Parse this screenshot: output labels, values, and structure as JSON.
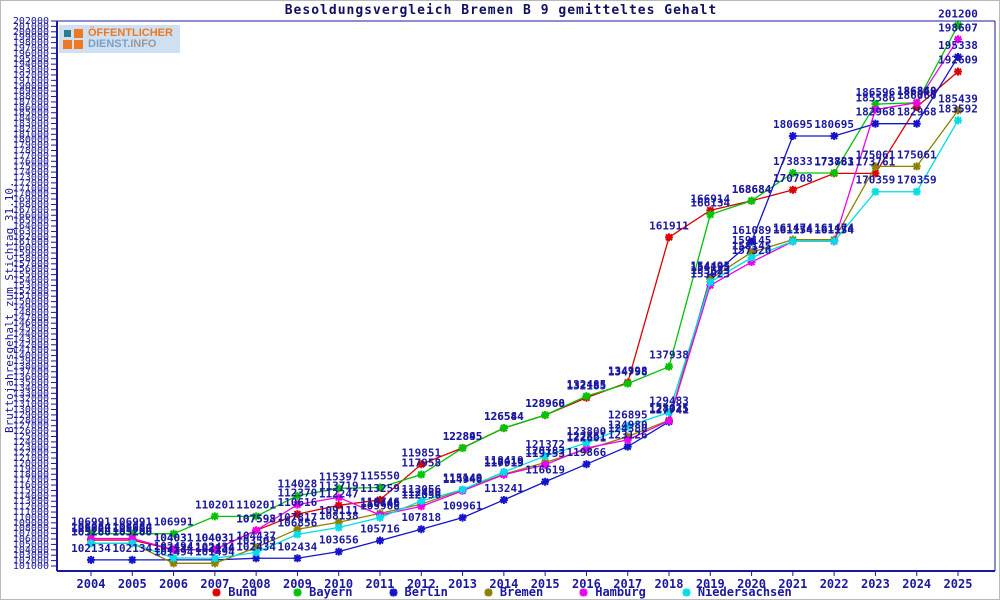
{
  "title": "Besoldungsvergleich Bremen B 9 gemitteltes Gehalt",
  "y_axis_title": "Bruttojahresgehalt zum Stichtag 31.10.",
  "logo": {
    "line1": "ÖFFENTLICHER",
    "line2a": "DIENST.",
    "line2b": "INFO"
  },
  "colors": {
    "axis": "#1a18a0",
    "tick_label": "#1a18a0",
    "point_label": "#1a18a0",
    "title": "#101060"
  },
  "chart_data": {
    "type": "line",
    "x": [
      2004,
      2005,
      2006,
      2007,
      2008,
      2009,
      2010,
      2011,
      2012,
      2013,
      2014,
      2015,
      2016,
      2017,
      2018,
      2019,
      2020,
      2021,
      2022,
      2023,
      2024,
      2025
    ],
    "series": [
      {
        "name": "Bund",
        "color": "#dd0000",
        "values": [
          105800,
          105800,
          104031,
          104031,
          107593,
          110616,
          112247,
          113259,
          119851,
          122895,
          126544,
          128960,
          132185,
          134998,
          161911,
          166914,
          168684,
          170708,
          173761,
          173761,
          186060,
          192609
        ]
      },
      {
        "name": "Bayern",
        "color": "#00c400",
        "values": [
          106991,
          106991,
          106991,
          110201,
          110201,
          114028,
          115397,
          115550,
          117958,
          122845,
          126584,
          128968,
          132485,
          134798,
          137938,
          166134,
          168684,
          173833,
          173833,
          186596,
          186848,
          201200
        ]
      },
      {
        "name": "Berlin",
        "color": "#1414cc",
        "values": [
          102134,
          102134,
          102134,
          102134,
          102434,
          102434,
          103656,
          105716,
          107818,
          109961,
          113241,
          116619,
          119866,
          123126,
          127741,
          154495,
          161089,
          180695,
          180695,
          182968,
          182968,
          195338
        ]
      },
      {
        "name": "Bremen",
        "color": "#8b8000",
        "values": [
          105200,
          105200,
          101494,
          101494,
          104437,
          107817,
          109111,
          110746,
          112456,
          115140,
          118019,
          120183,
          122601,
          124980,
          128025,
          154195,
          159145,
          161474,
          161474,
          175061,
          175061,
          185439
        ]
      },
      {
        "name": "Hamburg",
        "color": "#ee00ee",
        "values": [
          106084,
          106084,
          104031,
          104031,
          107598,
          112370,
          113719,
          110446,
          112056,
          114940,
          117919,
          119753,
          122861,
          124380,
          127925,
          153023,
          157320,
          161154,
          161154,
          185586,
          186860,
          198607
        ]
      },
      {
        "name": "Niedersachsen",
        "color": "#00dde6",
        "values": [
          105200,
          105200,
          102494,
          102434,
          103503,
          106856,
          108138,
          109968,
          113056,
          115149,
          118419,
          121372,
          123800,
          126895,
          129483,
          153623,
          158145,
          161174,
          161174,
          170359,
          170359,
          183592
        ]
      }
    ],
    "ylim": [
      101000,
      202000
    ],
    "ytick_step": 1000,
    "grid": false,
    "legend_position": "bottom",
    "point_labels": true
  }
}
